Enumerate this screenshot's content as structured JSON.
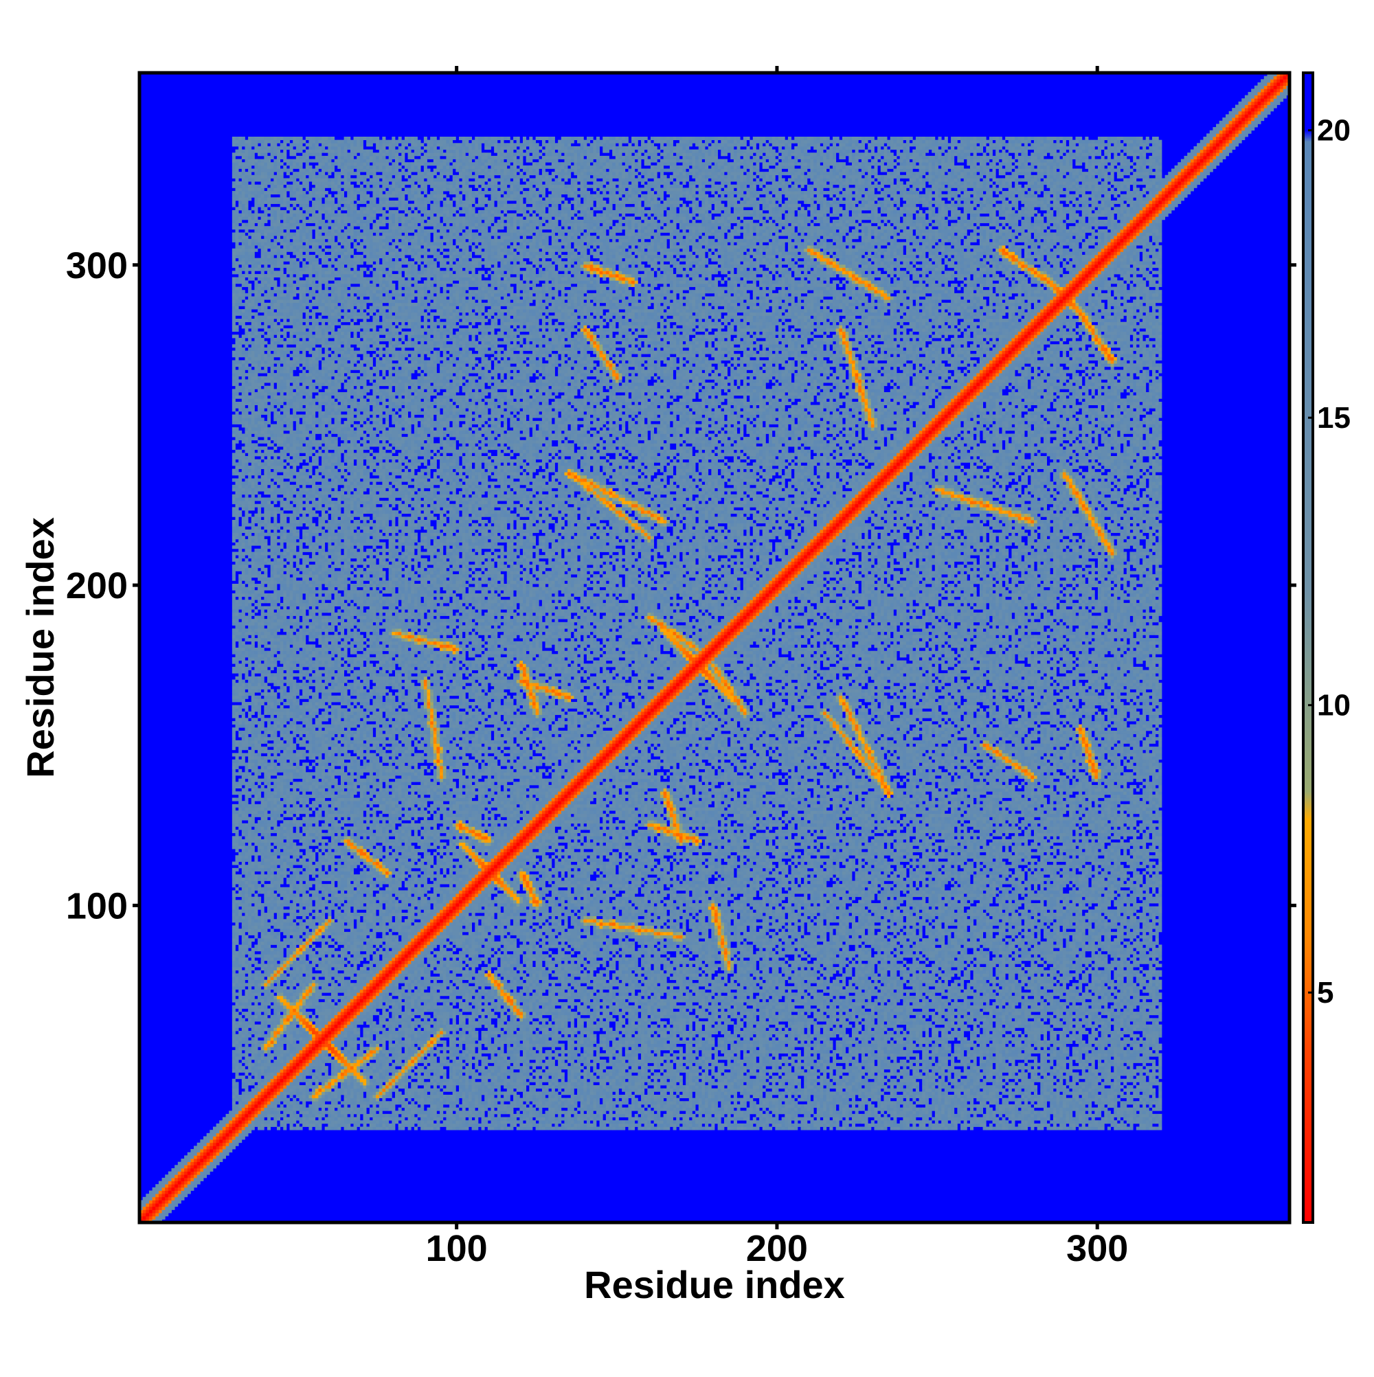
{
  "chart_data": {
    "type": "heatmap",
    "title": "",
    "xlabel": "Residue index",
    "ylabel": "Residue index",
    "xlim": [
      1,
      360
    ],
    "ylim": [
      1,
      360
    ],
    "x_ticks": [
      100,
      200,
      300
    ],
    "y_ticks": [
      100,
      200,
      300
    ],
    "x_tick_labels": [
      "100",
      "200",
      "300"
    ],
    "y_tick_labels": [
      "100",
      "200",
      "300"
    ],
    "n_residues": 360,
    "matrix": "symmetric residue-residue distance map",
    "colorbar": {
      "range": [
        1,
        21
      ],
      "ticks": [
        5,
        10,
        15,
        20
      ],
      "tick_labels": [
        "5",
        "10",
        "15",
        "20"
      ],
      "stops": [
        {
          "value": 1,
          "color": "#ff0000"
        },
        {
          "value": 4,
          "color": "#ff4400"
        },
        {
          "value": 6,
          "color": "#ff8800"
        },
        {
          "value": 8,
          "color": "#ffaa00"
        },
        {
          "value": 8.5,
          "color": "#9aaa70"
        },
        {
          "value": 12,
          "color": "#6f92a8"
        },
        {
          "value": 19.8,
          "color": "#5a87b8"
        },
        {
          "value": 20,
          "color": "#0000ff"
        },
        {
          "value": 21,
          "color": "#0000ff"
        }
      ]
    },
    "background_value": 21,
    "contact_region": {
      "x": [
        30,
        320
      ],
      "y": [
        30,
        340
      ]
    },
    "diagonal_band_width": 3,
    "crossing_features": [
      {
        "center": [
          55,
          60
        ],
        "length": 22
      },
      {
        "center": [
          110,
          110
        ],
        "length": 18
      },
      {
        "center": [
          175,
          175
        ],
        "length": 22
      },
      {
        "center": [
          290,
          290
        ],
        "length": 14
      }
    ],
    "off_diagonal_contacts": [
      {
        "from": [
          40,
          75
        ],
        "to": [
          60,
          95
        ]
      },
      {
        "from": [
          55,
          40
        ],
        "to": [
          75,
          55
        ]
      },
      {
        "from": [
          65,
          120
        ],
        "to": [
          78,
          110
        ]
      },
      {
        "from": [
          110,
          120
        ],
        "to": [
          100,
          125
        ]
      },
      {
        "from": [
          140,
          300
        ],
        "to": [
          155,
          295
        ]
      },
      {
        "from": [
          135,
          235
        ],
        "to": [
          165,
          220
        ]
      },
      {
        "from": [
          120,
          170
        ],
        "to": [
          135,
          165
        ]
      },
      {
        "from": [
          160,
          190
        ],
        "to": [
          175,
          180
        ]
      },
      {
        "from": [
          210,
          305
        ],
        "to": [
          235,
          290
        ]
      },
      {
        "from": [
          215,
          160
        ],
        "to": [
          235,
          135
        ]
      },
      {
        "from": [
          250,
          230
        ],
        "to": [
          280,
          220
        ]
      },
      {
        "from": [
          265,
          150
        ],
        "to": [
          280,
          140
        ]
      },
      {
        "from": [
          80,
          185
        ],
        "to": [
          100,
          180
        ]
      },
      {
        "from": [
          140,
          95
        ],
        "to": [
          170,
          90
        ]
      },
      {
        "from": [
          160,
          125
        ],
        "to": [
          175,
          120
        ]
      },
      {
        "from": [
          270,
          305
        ],
        "to": [
          285,
          295
        ]
      }
    ],
    "legend": "none"
  }
}
